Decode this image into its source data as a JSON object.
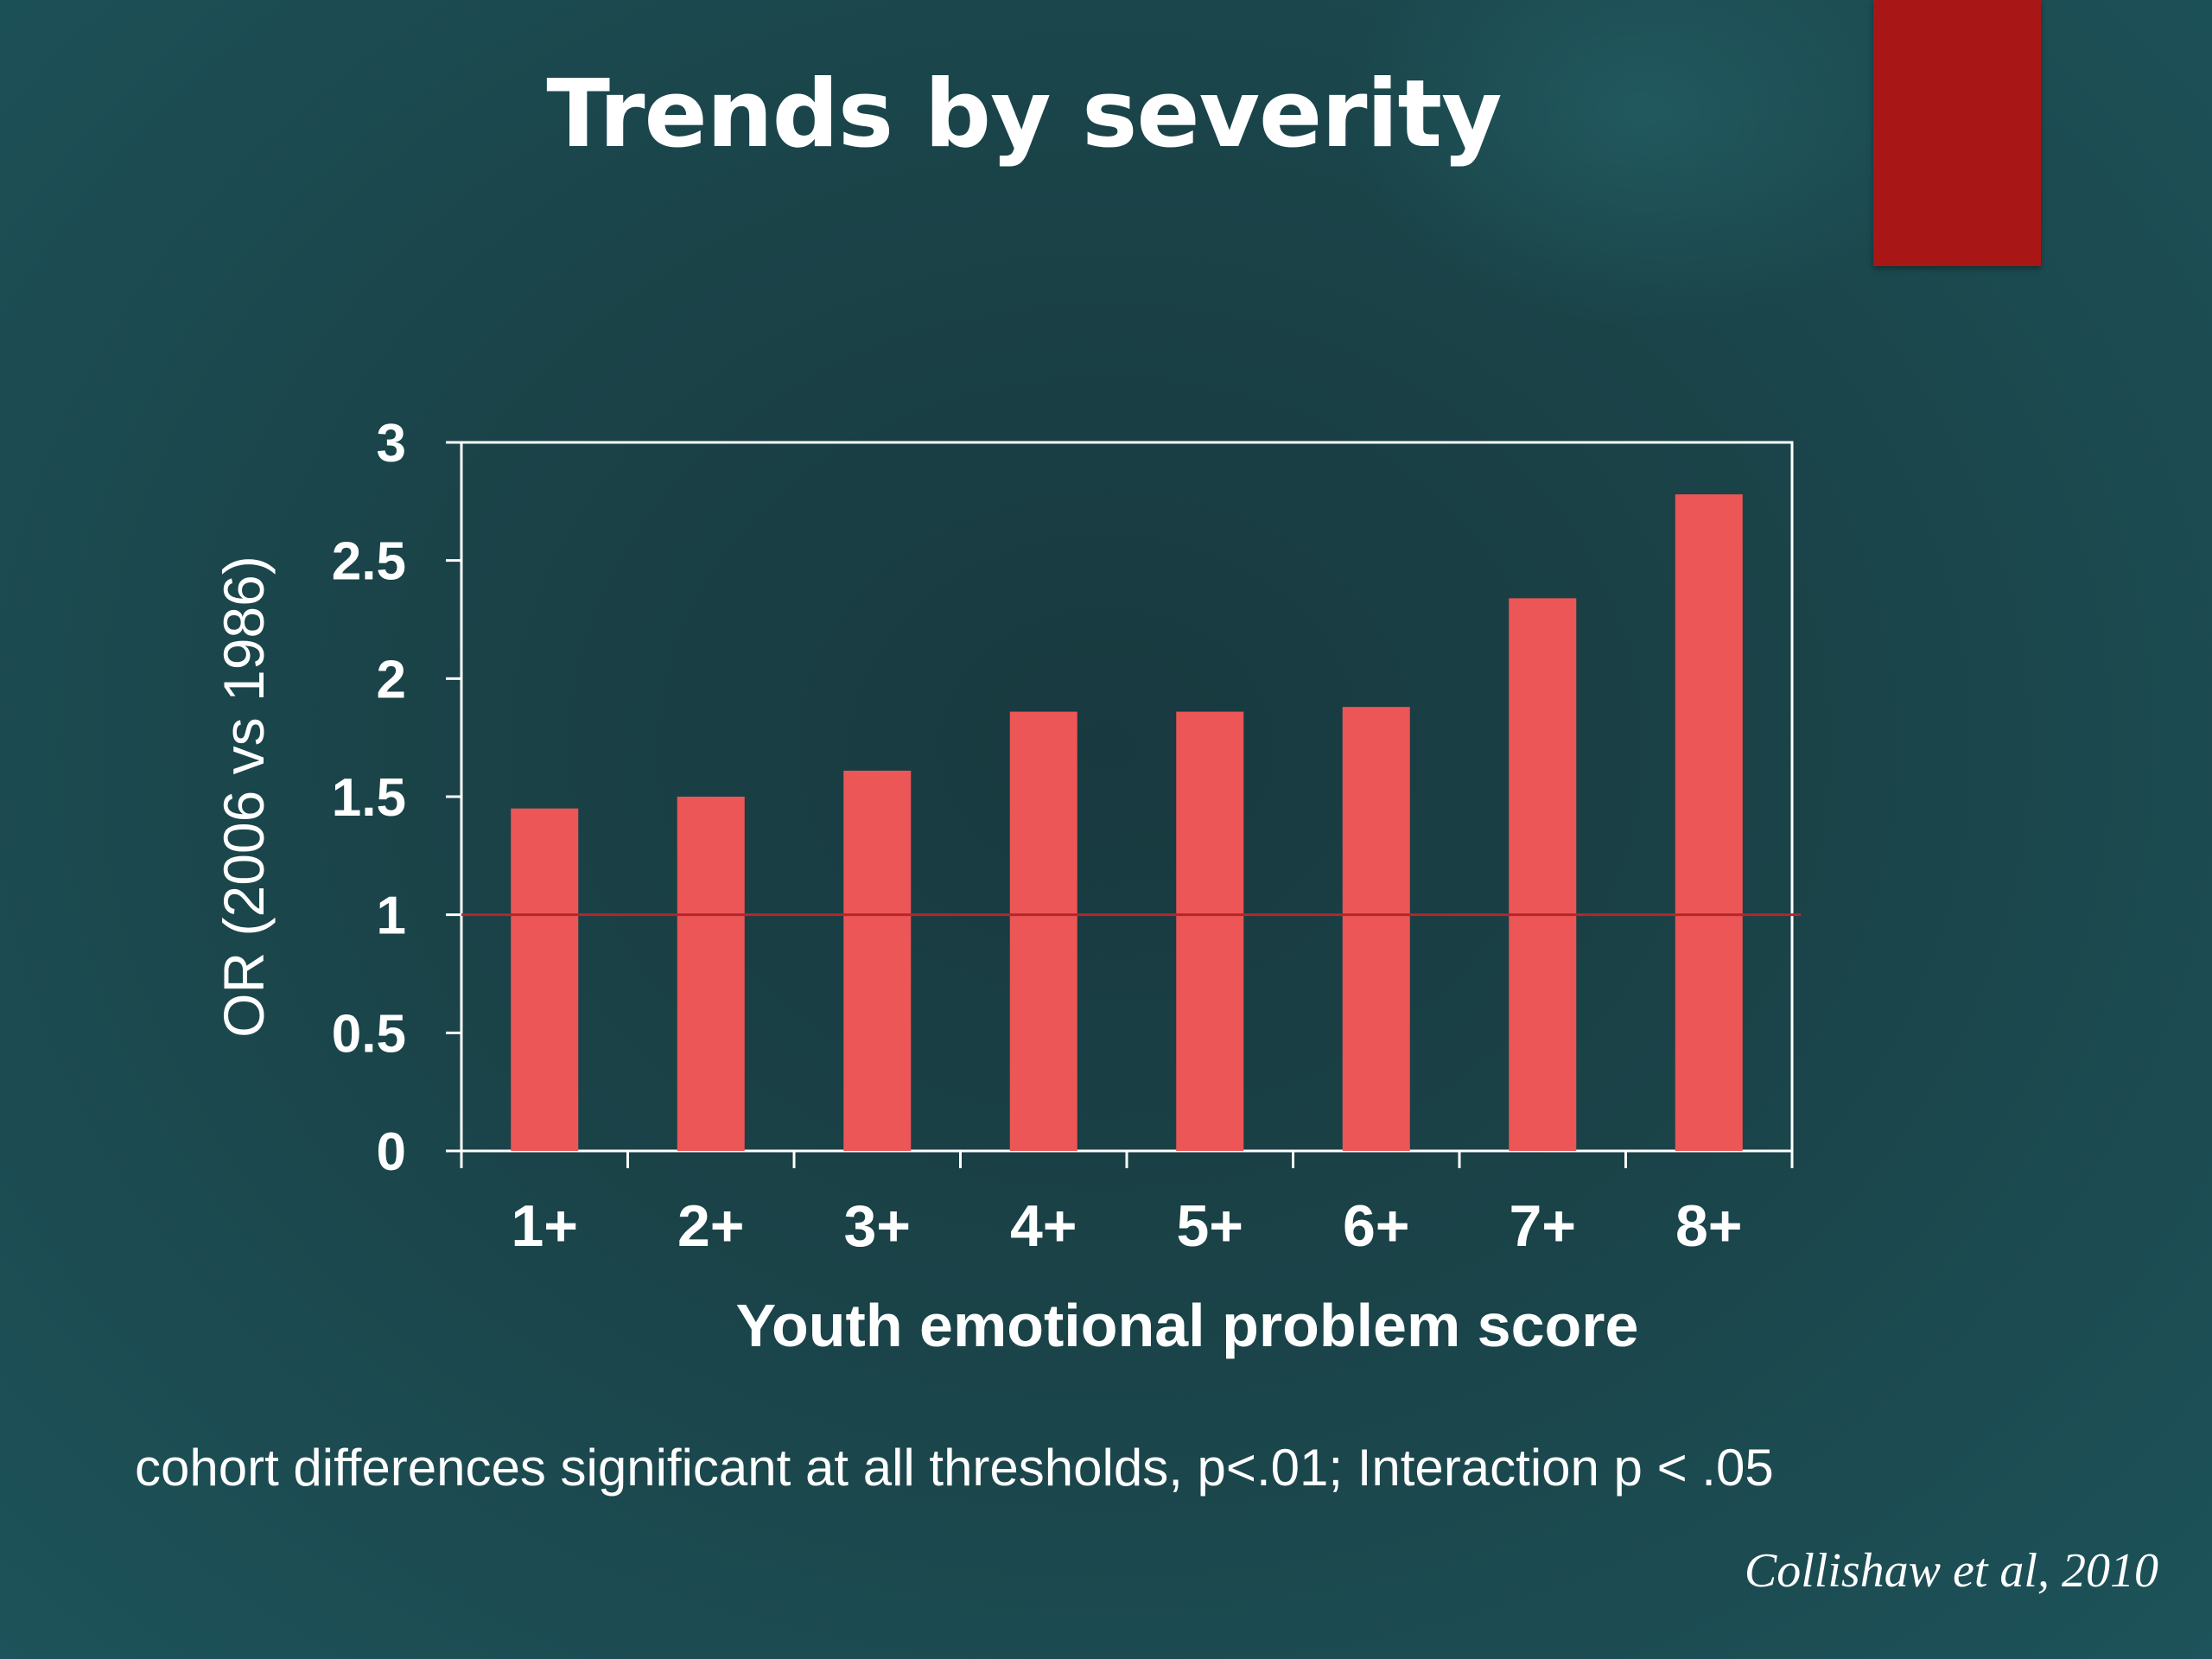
{
  "slide": {
    "title": "Trends by severity",
    "footnote": "cohort differences significant at all thresholds, p<.01; Interaction p < .05",
    "citation": "Collishaw et al, 2010"
  },
  "colors": {
    "bar": "#ec5656",
    "reference_line": "#b5262a",
    "accent": "#a91616",
    "axis": "#ffffff"
  },
  "chart_data": {
    "type": "bar",
    "categories": [
      "1+",
      "2+",
      "3+",
      "4+",
      "5+",
      "6+",
      "7+",
      "8+"
    ],
    "values": [
      1.45,
      1.5,
      1.61,
      1.86,
      1.86,
      1.88,
      2.34,
      2.78
    ],
    "xlabel": "Youth emotional problem score",
    "ylabel": "OR (2006 vs 1986)",
    "ylim": [
      0,
      3
    ],
    "yticks": [
      0,
      0.5,
      1,
      1.5,
      2,
      2.5,
      3
    ],
    "ytick_labels": [
      "0",
      "0.5",
      "1",
      "1.5",
      "2",
      "2.5",
      "3"
    ],
    "reference_line": 1,
    "grid": false,
    "legend": "none"
  }
}
